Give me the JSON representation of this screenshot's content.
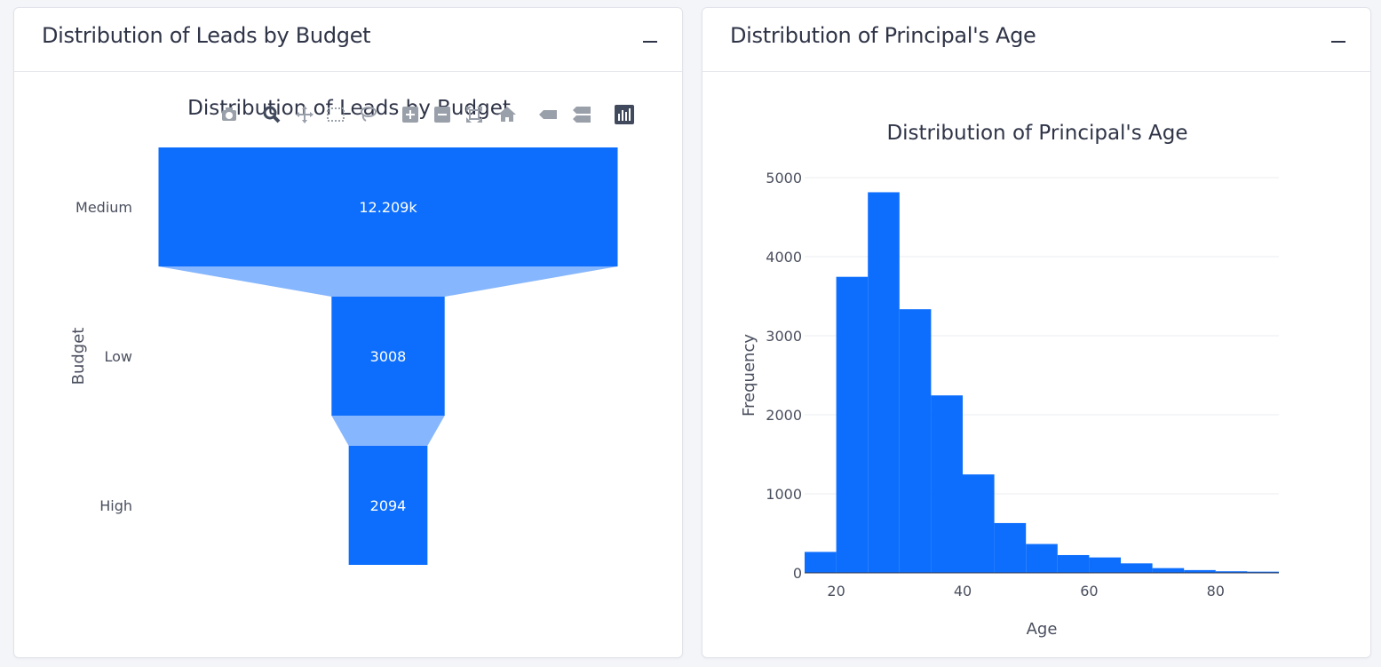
{
  "colors": {
    "bar": "#0d6efd",
    "connector": "#86b6fe",
    "grid": "#ebedf1",
    "axis_text": "#4a4f5e",
    "title_text": "#2f3447",
    "modebar_icon": "#9aa0aa",
    "modebar_active": "#414a5c"
  },
  "left_panel": {
    "header_title": "Distribution of Leads by Budget",
    "collapse_icon": "minus-icon",
    "modebar": [
      {
        "name": "camera-icon",
        "label": "Download plot as a png"
      },
      {
        "name": "zoom-icon",
        "label": "Zoom"
      },
      {
        "name": "pan-icon",
        "label": "Pan"
      },
      {
        "name": "box-select-icon",
        "label": "Box Select"
      },
      {
        "name": "lasso-select-icon",
        "label": "Lasso Select"
      },
      {
        "name": "zoom-in-icon",
        "label": "Zoom in"
      },
      {
        "name": "zoom-out-icon",
        "label": "Zoom out"
      },
      {
        "name": "autoscale-icon",
        "label": "Autoscale"
      },
      {
        "name": "reset-axes-icon",
        "label": "Reset axes"
      },
      {
        "name": "hover-closest-icon",
        "label": "Show closest data on hover"
      },
      {
        "name": "hover-compare-icon",
        "label": "Compare data on hover"
      },
      {
        "name": "plotly-logo-icon",
        "label": "Produced with Plotly"
      }
    ]
  },
  "right_panel": {
    "header_title": "Distribution of Principal's Age",
    "collapse_icon": "minus-icon"
  },
  "chart_data": [
    {
      "type": "funnel",
      "title": "Distribution of Leads by Budget",
      "ylabel": "Budget",
      "categories": [
        "Medium",
        "Low",
        "High"
      ],
      "values": [
        12209,
        3008,
        2094
      ],
      "value_labels": [
        "12.209k",
        "3008",
        "2094"
      ]
    },
    {
      "type": "bar",
      "title": "Distribution of Principal's Age",
      "xlabel": "Age",
      "ylabel": "Frequency",
      "bin_edges": [
        15,
        20,
        25,
        30,
        35,
        40,
        45,
        50,
        55,
        60,
        65,
        70,
        75,
        80,
        85,
        90
      ],
      "values": [
        265,
        3745,
        4815,
        3335,
        2245,
        1245,
        630,
        365,
        225,
        195,
        120,
        60,
        35,
        20,
        15
      ],
      "xlim": [
        15,
        90
      ],
      "ylim": [
        0,
        5000
      ],
      "xticks": [
        20,
        40,
        60,
        80
      ],
      "yticks": [
        0,
        1000,
        2000,
        3000,
        4000,
        5000
      ],
      "grid": true
    }
  ]
}
